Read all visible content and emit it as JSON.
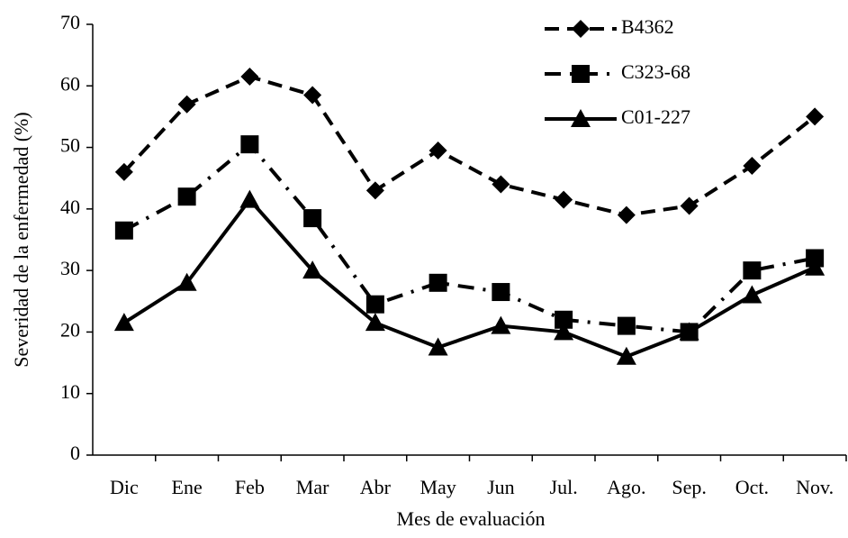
{
  "chart_data": {
    "type": "line",
    "x_label": "Mes de evaluación",
    "y_label": "Severidad de la enfermedad (%)",
    "categories": [
      "Dic",
      "Ene",
      "Feb",
      "Mar",
      "Abr",
      "May",
      "Jun",
      "Jul.",
      "Ago.",
      "Sep.",
      "Oct.",
      "Nov."
    ],
    "series": [
      {
        "name": "B4362",
        "color": "#000000",
        "dash": "dashed",
        "marker": "diamond",
        "values": [
          46,
          57,
          61.5,
          58.5,
          43,
          49.5,
          44,
          41.5,
          39,
          40.5,
          47,
          55
        ]
      },
      {
        "name": "C323-68",
        "color": "#000000",
        "dash": "dashdot",
        "marker": "square",
        "values": [
          36.5,
          42,
          50.5,
          38.5,
          24.5,
          28,
          26.5,
          22,
          21,
          20,
          30,
          32
        ]
      },
      {
        "name": "C01-227",
        "color": "#000000",
        "dash": "solid",
        "marker": "triangle",
        "values": [
          21.5,
          28,
          41.5,
          30,
          21.5,
          17.5,
          21,
          20,
          16,
          20,
          26,
          30.5
        ]
      }
    ],
    "ylim": [
      0,
      70
    ],
    "yticks": [
      0,
      10,
      20,
      30,
      40,
      50,
      60,
      70
    ],
    "grid": false,
    "legend": "top-right"
  }
}
